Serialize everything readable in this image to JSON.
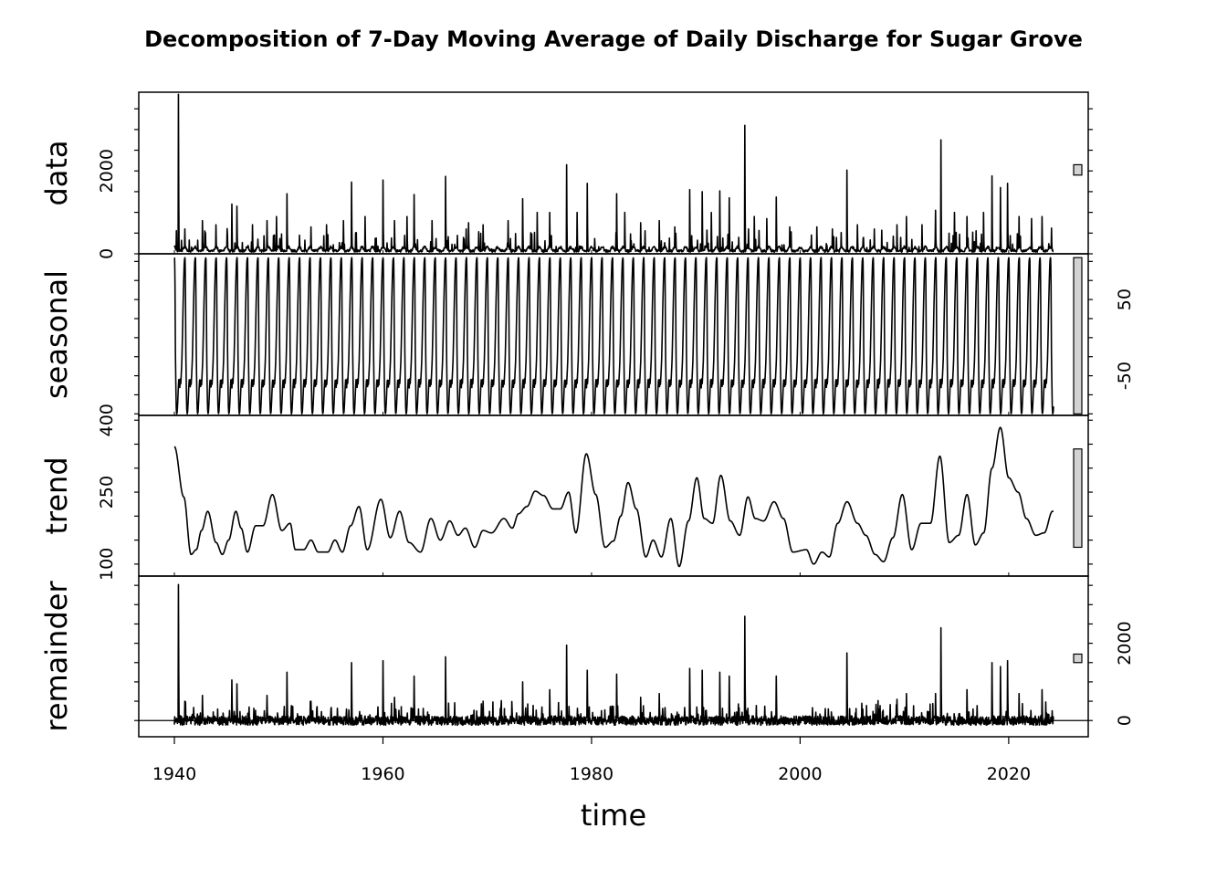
{
  "chart_data": {
    "type": "line",
    "title": "Decomposition of 7-Day Moving Average of Daily Discharge for Sugar Grove",
    "xlabel": "time",
    "xlim": [
      1940,
      2024.3
    ],
    "x_ticks": [
      {
        "value": 1940,
        "label": "1940"
      },
      {
        "value": 1960,
        "label": "1960"
      },
      {
        "value": 1980,
        "label": "1980"
      },
      {
        "value": 2000,
        "label": "2000"
      },
      {
        "value": 2020,
        "label": "2020"
      }
    ],
    "panels": [
      {
        "name": "data",
        "label": "data",
        "ylim": [
          0,
          3900
        ],
        "axis_side": "left",
        "y_ticks": [
          {
            "value": 0,
            "label": "0"
          },
          {
            "value": 2000,
            "label": "2000"
          }
        ],
        "scale_bar": [
          1900,
          2150
        ],
        "baseline": 40,
        "season_amp": 90,
        "peak_freq": 0.07,
        "peaks": [
          [
            1940.4,
            3850
          ],
          [
            1941.0,
            600
          ],
          [
            1942.7,
            800
          ],
          [
            1944.0,
            700
          ],
          [
            1945.5,
            1200
          ],
          [
            1946.0,
            1150
          ],
          [
            1947.5,
            700
          ],
          [
            1948.9,
            800
          ],
          [
            1949.8,
            900
          ],
          [
            1950.8,
            1450
          ],
          [
            1953.1,
            650
          ],
          [
            1954.6,
            700
          ],
          [
            1956.2,
            800
          ],
          [
            1957.0,
            1730
          ],
          [
            1958.3,
            900
          ],
          [
            1960.0,
            1780
          ],
          [
            1961.1,
            800
          ],
          [
            1962.3,
            900
          ],
          [
            1963.0,
            1430
          ],
          [
            1964.7,
            800
          ],
          [
            1966.0,
            1870
          ],
          [
            1968.2,
            750
          ],
          [
            1969.6,
            700
          ],
          [
            1972.0,
            800
          ],
          [
            1973.4,
            1330
          ],
          [
            1974.8,
            1000
          ],
          [
            1976.0,
            1000
          ],
          [
            1977.6,
            2150
          ],
          [
            1978.6,
            1000
          ],
          [
            1979.6,
            1700
          ],
          [
            1982.4,
            1450
          ],
          [
            1983.2,
            1000
          ],
          [
            1984.7,
            750
          ],
          [
            1986.5,
            800
          ],
          [
            1988.0,
            650
          ],
          [
            1989.4,
            1550
          ],
          [
            1990.6,
            1500
          ],
          [
            1991.5,
            1000
          ],
          [
            1992.3,
            1520
          ],
          [
            1993.2,
            1350
          ],
          [
            1994.7,
            3100
          ],
          [
            1995.6,
            900
          ],
          [
            1996.8,
            850
          ],
          [
            1997.7,
            1370
          ],
          [
            1999.0,
            650
          ],
          [
            2001.6,
            650
          ],
          [
            2003.1,
            600
          ],
          [
            2004.5,
            2020
          ],
          [
            2005.5,
            700
          ],
          [
            2007.1,
            600
          ],
          [
            2009.3,
            700
          ],
          [
            2010.2,
            900
          ],
          [
            2011.7,
            700
          ],
          [
            2013.0,
            1050
          ],
          [
            2013.5,
            2750
          ],
          [
            2014.8,
            1000
          ],
          [
            2016.0,
            900
          ],
          [
            2017.6,
            1000
          ],
          [
            2018.4,
            1880
          ],
          [
            2019.2,
            1600
          ],
          [
            2019.9,
            1700
          ],
          [
            2021.0,
            900
          ],
          [
            2022.2,
            850
          ],
          [
            2023.2,
            900
          ],
          [
            2024.1,
            620
          ]
        ]
      },
      {
        "name": "seasonal",
        "label": "seasonal",
        "ylim": [
          -102,
          110
        ],
        "axis_side": "right",
        "y_ticks": [
          {
            "value": 50,
            "label": "50"
          },
          {
            "value": -50,
            "label": "-50"
          }
        ],
        "scale_bar": [
          -100,
          105
        ],
        "period": 1,
        "shape": [
          [
            0.0,
            105
          ],
          [
            0.03,
            104
          ],
          [
            0.06,
            70
          ],
          [
            0.1,
            -20
          ],
          [
            0.14,
            -60
          ],
          [
            0.18,
            -92
          ],
          [
            0.22,
            -100
          ],
          [
            0.27,
            -98
          ],
          [
            0.32,
            -85
          ],
          [
            0.37,
            -68
          ],
          [
            0.42,
            -55
          ],
          [
            0.47,
            -58
          ],
          [
            0.52,
            -66
          ],
          [
            0.56,
            -54
          ],
          [
            0.61,
            -62
          ],
          [
            0.66,
            -48
          ],
          [
            0.72,
            -30
          ],
          [
            0.78,
            5
          ],
          [
            0.84,
            45
          ],
          [
            0.9,
            78
          ],
          [
            0.95,
            100
          ],
          [
            1.0,
            105
          ]
        ]
      },
      {
        "name": "trend",
        "label": "trend",
        "ylim": [
          75,
          410
        ],
        "axis_side": "left",
        "y_ticks": [
          {
            "value": 100,
            "label": "100"
          },
          {
            "value": 250,
            "label": "250"
          },
          {
            "value": 400,
            "label": "400"
          }
        ],
        "scale_bar": [
          135,
          340
        ],
        "series": [
          [
            1940.0,
            345
          ],
          [
            1940.9,
            240
          ],
          [
            1941.6,
            120
          ],
          [
            1942.1,
            130
          ],
          [
            1942.6,
            170
          ],
          [
            1943.2,
            210
          ],
          [
            1944.0,
            145
          ],
          [
            1944.6,
            120
          ],
          [
            1945.2,
            150
          ],
          [
            1945.9,
            210
          ],
          [
            1946.4,
            175
          ],
          [
            1947.0,
            125
          ],
          [
            1947.8,
            180
          ],
          [
            1948.5,
            180
          ],
          [
            1949.4,
            245
          ],
          [
            1950.3,
            170
          ],
          [
            1951.1,
            185
          ],
          [
            1951.6,
            130
          ],
          [
            1952.4,
            130
          ],
          [
            1953.1,
            150
          ],
          [
            1953.8,
            125
          ],
          [
            1954.7,
            125
          ],
          [
            1955.4,
            150
          ],
          [
            1956.1,
            125
          ],
          [
            1956.9,
            180
          ],
          [
            1957.7,
            220
          ],
          [
            1958.5,
            130
          ],
          [
            1959.8,
            235
          ],
          [
            1960.7,
            155
          ],
          [
            1961.6,
            210
          ],
          [
            1962.5,
            145
          ],
          [
            1963.6,
            125
          ],
          [
            1964.6,
            195
          ],
          [
            1965.5,
            150
          ],
          [
            1966.4,
            190
          ],
          [
            1967.2,
            160
          ],
          [
            1967.9,
            175
          ],
          [
            1968.8,
            135
          ],
          [
            1969.6,
            170
          ],
          [
            1970.4,
            165
          ],
          [
            1971.6,
            195
          ],
          [
            1972.4,
            175
          ],
          [
            1973.0,
            205
          ],
          [
            1973.8,
            220
          ],
          [
            1974.6,
            252
          ],
          [
            1975.4,
            243
          ],
          [
            1976.3,
            215
          ],
          [
            1977.0,
            215
          ],
          [
            1977.8,
            250
          ],
          [
            1978.5,
            165
          ],
          [
            1979.5,
            330
          ],
          [
            1980.4,
            245
          ],
          [
            1981.3,
            135
          ],
          [
            1982.1,
            148
          ],
          [
            1982.8,
            200
          ],
          [
            1983.5,
            270
          ],
          [
            1984.3,
            215
          ],
          [
            1985.2,
            115
          ],
          [
            1985.9,
            150
          ],
          [
            1986.7,
            115
          ],
          [
            1987.6,
            195
          ],
          [
            1988.4,
            95
          ],
          [
            1989.3,
            190
          ],
          [
            1990.1,
            280
          ],
          [
            1990.8,
            195
          ],
          [
            1991.6,
            185
          ],
          [
            1992.4,
            285
          ],
          [
            1993.3,
            190
          ],
          [
            1994.2,
            160
          ],
          [
            1995.0,
            240
          ],
          [
            1995.7,
            195
          ],
          [
            1996.5,
            190
          ],
          [
            1997.5,
            230
          ],
          [
            1998.4,
            195
          ],
          [
            1999.3,
            125
          ],
          [
            2000.6,
            130
          ],
          [
            2001.3,
            100
          ],
          [
            2002.1,
            125
          ],
          [
            2002.8,
            115
          ],
          [
            2003.6,
            185
          ],
          [
            2004.5,
            230
          ],
          [
            2005.5,
            185
          ],
          [
            2006.3,
            160
          ],
          [
            2007.2,
            120
          ],
          [
            2008.0,
            105
          ],
          [
            2008.9,
            155
          ],
          [
            2009.8,
            245
          ],
          [
            2010.7,
            130
          ],
          [
            2011.6,
            185
          ],
          [
            2012.5,
            185
          ],
          [
            2013.4,
            325
          ],
          [
            2014.3,
            145
          ],
          [
            2015.2,
            160
          ],
          [
            2016.0,
            245
          ],
          [
            2016.8,
            140
          ],
          [
            2017.6,
            165
          ],
          [
            2018.4,
            300
          ],
          [
            2019.2,
            385
          ],
          [
            2020.0,
            280
          ],
          [
            2020.9,
            250
          ],
          [
            2021.7,
            195
          ],
          [
            2022.6,
            160
          ],
          [
            2023.4,
            165
          ],
          [
            2024.2,
            210
          ]
        ]
      },
      {
        "name": "remainder",
        "label": "remainder",
        "ylim": [
          -420,
          3740
        ],
        "axis_side": "right",
        "y_ticks": [
          {
            "value": 0,
            "label": "0"
          },
          {
            "value": 2000,
            "label": "2000"
          }
        ],
        "scale_bar": [
          1500,
          1720
        ],
        "baseline": 0,
        "noise_amp": 120,
        "peak_freq": 0.09,
        "peaks": [
          [
            1940.4,
            3520
          ],
          [
            1941.0,
            500
          ],
          [
            1942.7,
            650
          ],
          [
            1945.5,
            1050
          ],
          [
            1946.0,
            950
          ],
          [
            1948.9,
            650
          ],
          [
            1950.8,
            1250
          ],
          [
            1953.1,
            500
          ],
          [
            1957.0,
            1500
          ],
          [
            1960.0,
            1550
          ],
          [
            1961.1,
            600
          ],
          [
            1963.0,
            1150
          ],
          [
            1966.0,
            1650
          ],
          [
            1969.6,
            500
          ],
          [
            1973.4,
            1000
          ],
          [
            1976.0,
            800
          ],
          [
            1977.6,
            1950
          ],
          [
            1979.6,
            1300
          ],
          [
            1982.4,
            1200
          ],
          [
            1984.7,
            600
          ],
          [
            1986.5,
            700
          ],
          [
            1989.4,
            1350
          ],
          [
            1990.6,
            1300
          ],
          [
            1992.3,
            1250
          ],
          [
            1993.2,
            1150
          ],
          [
            1994.7,
            2700
          ],
          [
            1997.7,
            1150
          ],
          [
            2004.5,
            1750
          ],
          [
            2009.3,
            550
          ],
          [
            2010.2,
            700
          ],
          [
            2013.0,
            700
          ],
          [
            2013.5,
            2400
          ],
          [
            2016.0,
            800
          ],
          [
            2018.4,
            1500
          ],
          [
            2019.2,
            1400
          ],
          [
            2019.9,
            1550
          ],
          [
            2021.0,
            700
          ],
          [
            2023.2,
            800
          ]
        ]
      }
    ]
  }
}
